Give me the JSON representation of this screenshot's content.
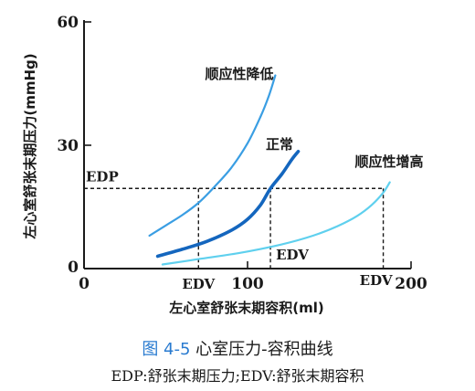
{
  "chart_data": {
    "type": "line",
    "title": "",
    "xlabel": "左心室舒张末期容积(ml)",
    "ylabel": "左心室舒张末期压力(mmHg)",
    "xlim": [
      0,
      200
    ],
    "ylim": [
      0,
      60
    ],
    "x_ticks": [
      {
        "value": 0,
        "label": "0"
      },
      {
        "value": 100,
        "label": "100"
      },
      {
        "value": 200,
        "label": "200"
      }
    ],
    "y_ticks": [
      {
        "value": 0,
        "label": "0"
      },
      {
        "value": 30,
        "label": "30"
      },
      {
        "value": 60,
        "label": "60"
      }
    ],
    "grid": false,
    "series": [
      {
        "name": "顺应性降低",
        "color": "#3a9ee3",
        "width": 2.2,
        "x": [
          40,
          50,
          60,
          70,
          80,
          90,
          100,
          108,
          113,
          117
        ],
        "y": [
          8,
          10.5,
          13,
          16,
          20,
          24.5,
          30.5,
          37,
          42,
          47
        ]
      },
      {
        "name": "正常",
        "color": "#1466be",
        "width": 3.6,
        "x": [
          45,
          60,
          75,
          90,
          100,
          108,
          114,
          121,
          127,
          131
        ],
        "y": [
          3,
          4.7,
          6.6,
          9.3,
          12,
          15.5,
          19.5,
          23,
          26.5,
          28.5
        ]
      },
      {
        "name": "顺应性增高",
        "color": "#5fd0ee",
        "width": 2.2,
        "x": [
          48,
          70,
          95,
          120,
          140,
          155,
          167,
          176,
          183,
          187
        ],
        "y": [
          1,
          2.3,
          3.8,
          5.8,
          8,
          10.3,
          12.8,
          15.5,
          18.5,
          21
        ]
      }
    ],
    "reference": {
      "edp": 19.5,
      "edv_values": [
        70,
        114,
        183
      ]
    },
    "annotations": {
      "edp": "EDP",
      "edv": "EDV"
    }
  },
  "caption": {
    "figure_number": "图 4-5",
    "title": "心室压力-容积曲线"
  },
  "note": "EDP:舒张末期压力;EDV:舒张末期容积"
}
